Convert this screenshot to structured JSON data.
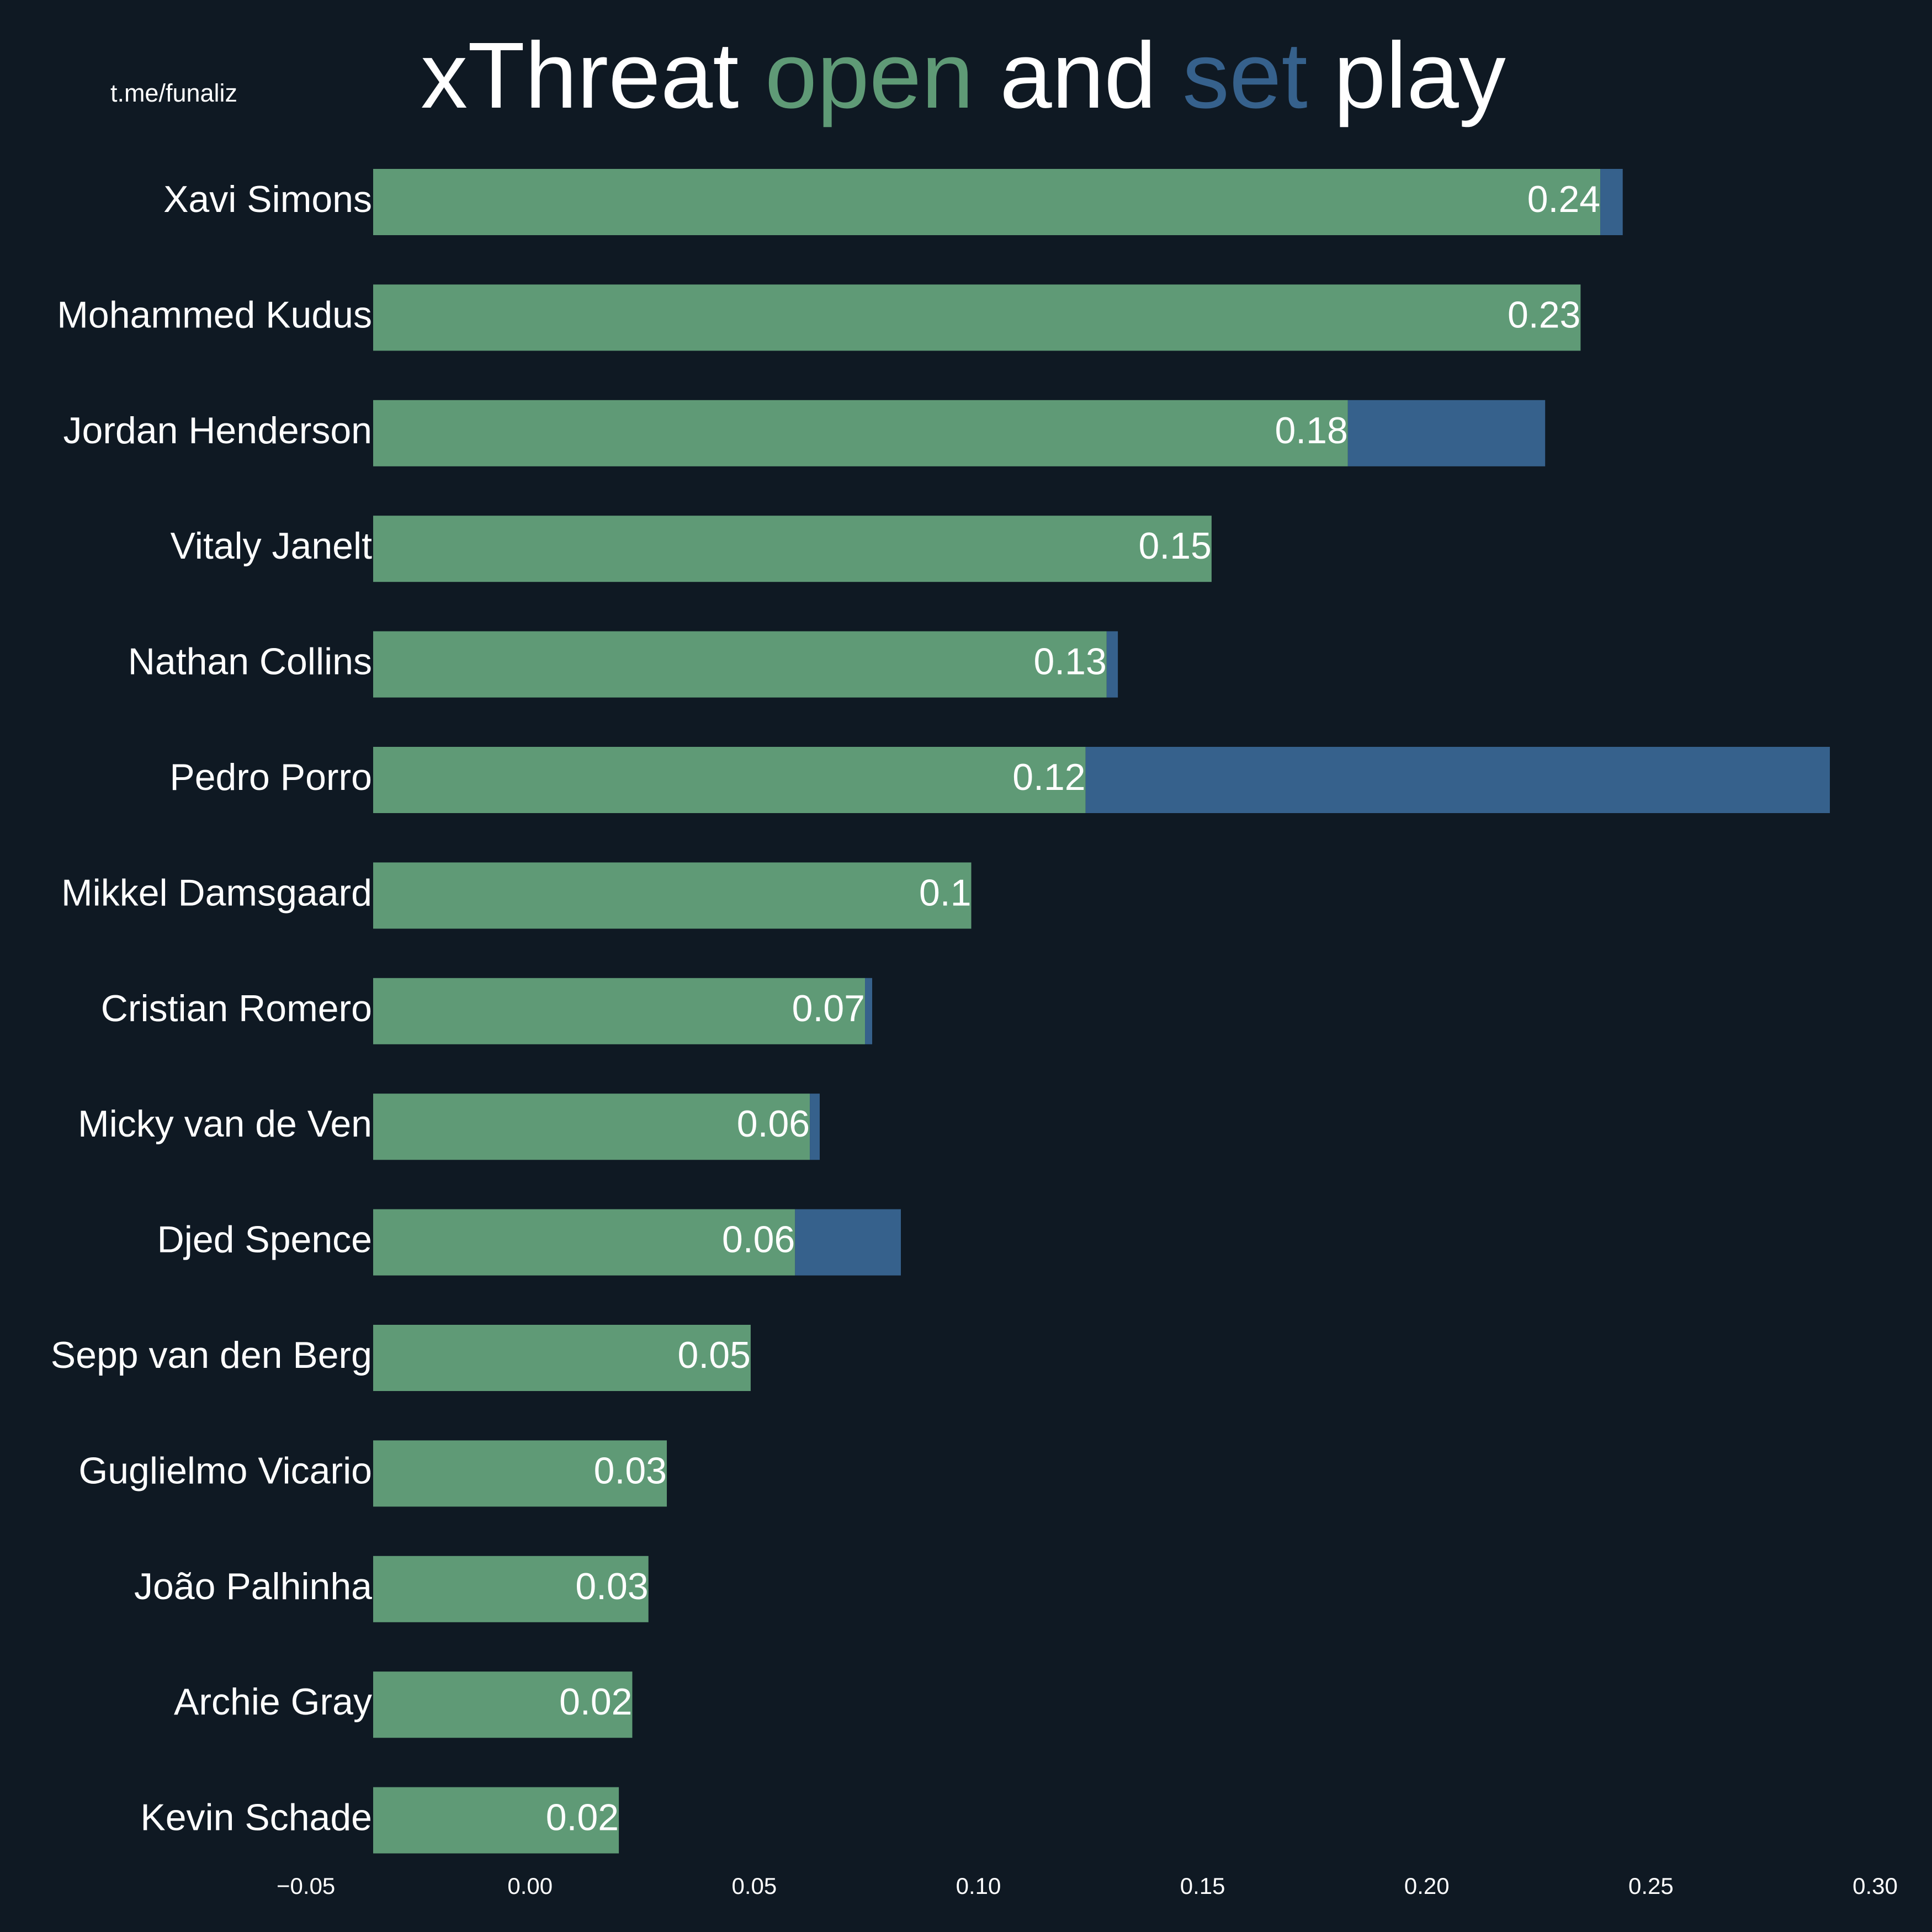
{
  "chart_data": {
    "type": "stacked-barh",
    "title": [
      "xThreat",
      "and",
      "play"
    ],
    "source": "t.me/funaliz",
    "categories": [
      "Xavi Simons",
      "Mohammed Kudus",
      "Jordan Henderson",
      "Vitaly Janelt",
      "Nathan Collins",
      "Pedro Porro",
      "Mikkel Damsgaard",
      "Cristian Romero",
      "Micky van de Ven",
      "Djed Spence",
      "Sepp van den Berg",
      "Guglielmo Vicario",
      "João Palhinha",
      "Archie Gray",
      "Kevin Schade"
    ],
    "series": [
      {
        "name": "open",
        "color": "#5f9a76",
        "values": [
          0.2387,
          0.2343,
          0.1824,
          0.152,
          0.1286,
          0.1239,
          0.0984,
          0.0747,
          0.0624,
          0.0591,
          0.0492,
          0.0305,
          0.0264,
          0.0228,
          0.0198
        ],
        "value_labels": [
          "0.24",
          "0.23",
          "0.18",
          "0.15",
          "0.13",
          "0.12",
          "0.1",
          "0.07",
          "0.06",
          "0.06",
          "0.05",
          "0.03",
          "0.03",
          "0.02",
          "0.02"
        ]
      },
      {
        "name": "set",
        "color": "#36618c",
        "values": [
          0.005,
          0,
          0.044,
          0,
          0.0025,
          0.166,
          0,
          0.0016,
          0.0022,
          0.0236,
          0,
          0,
          0,
          0,
          0
        ]
      }
    ],
    "xlim": [
      -0.035,
      0.3
    ],
    "xticks": [
      {
        "value": -0.05,
        "label": "−0.05"
      },
      {
        "value": 0,
        "label": "0.00"
      },
      {
        "value": 0.05,
        "label": "0.05"
      },
      {
        "value": 0.1,
        "label": "0.10"
      },
      {
        "value": 0.15,
        "label": "0.15"
      },
      {
        "value": 0.2,
        "label": "0.20"
      },
      {
        "value": 0.25,
        "label": "0.25"
      },
      {
        "value": 0.3,
        "label": "0.30"
      }
    ],
    "grid": false
  }
}
